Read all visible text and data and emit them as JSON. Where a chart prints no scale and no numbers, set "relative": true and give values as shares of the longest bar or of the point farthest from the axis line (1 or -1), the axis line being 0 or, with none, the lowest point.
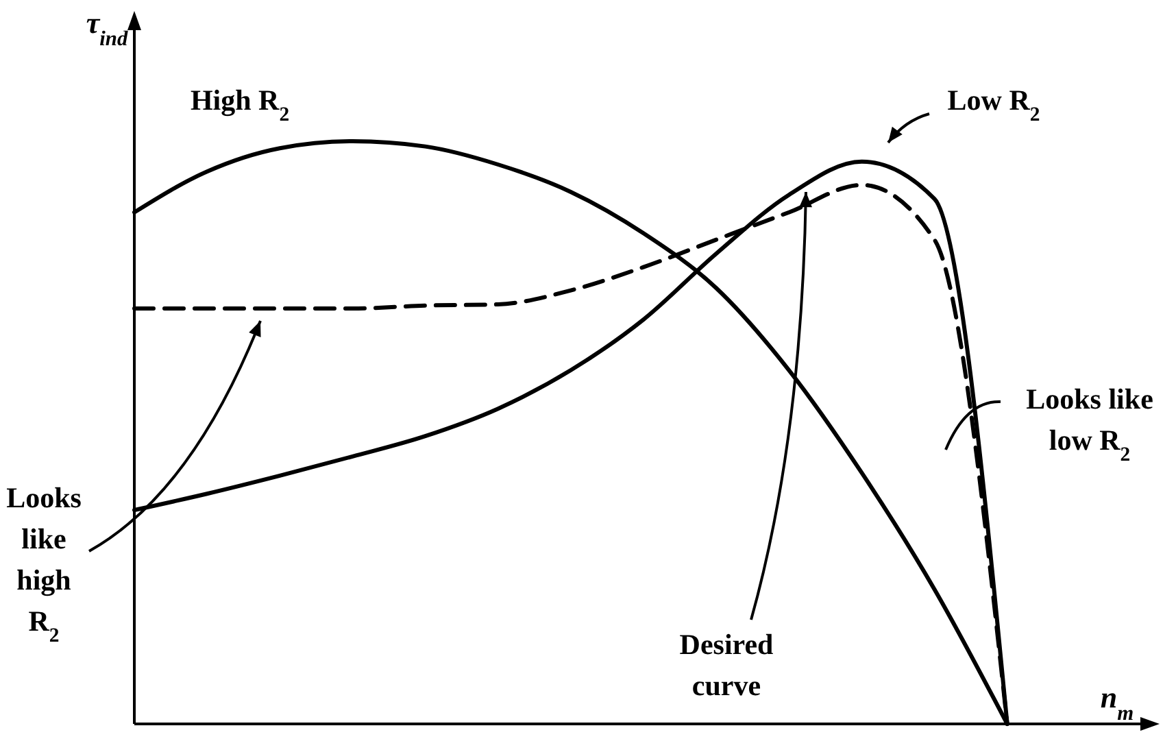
{
  "chart_data": {
    "type": "line",
    "relative": true,
    "xlabel": "n$_{m}$",
    "ylabel": "τ$_{ind}$",
    "categories": [
      null,
      null,
      null,
      null,
      null,
      null,
      null,
      null,
      null,
      null,
      null,
      null,
      null,
      null,
      null
    ],
    "series": [
      {
        "name": "High R$_{2}$",
        "color": "#000000",
        "line_style": "solid",
        "values": [
          0.878,
          0.948,
          0.988,
          1,
          0.991,
          0.96,
          0.913,
          0.842,
          0.748,
          0.607,
          0.431,
          0.231,
          0,
          null,
          null
        ]
      },
      {
        "name": "Low R$_{2}$",
        "color": "#000000",
        "line_style": "solid",
        "values": [
          0.367,
          0.395,
          0.426,
          0.459,
          0.494,
          0.541,
          0.607,
          0.694,
          0.807,
          0.908,
          0.965,
          0.901,
          0,
          null,
          null
        ]
      },
      {
        "color": "#000000",
        "line_style": "dashed",
        "values": [
          0.713,
          0.713,
          0.713,
          0.713,
          0.718,
          0.72,
          0.744,
          0.784,
          0.831,
          0.878,
          0.925,
          0.831,
          0,
          null,
          null
        ]
      }
    ],
    "annotations": [
      "Looks like high R$_{2}$",
      "Looks like low R$_{2}$",
      "Desired curve"
    ]
  }
}
